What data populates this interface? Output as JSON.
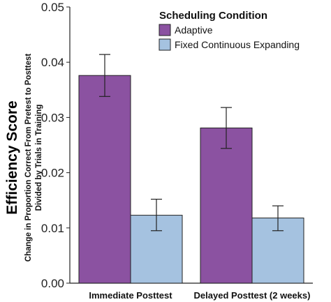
{
  "chart_data": {
    "type": "bar",
    "categories": [
      "Immediate Posttest",
      "Delayed Posttest (2 weeks)"
    ],
    "series": [
      {
        "name": "Adaptive",
        "color": "#8b52a1",
        "values": [
          0.0376,
          0.0281
        ],
        "error_low": [
          0.0338,
          0.0244
        ],
        "error_high": [
          0.0414,
          0.0318
        ]
      },
      {
        "name": "Fixed Continuous Expanding",
        "color": "#a5c2e0",
        "values": [
          0.0123,
          0.0118
        ],
        "error_low": [
          0.0095,
          0.0095
        ],
        "error_high": [
          0.0152,
          0.014
        ]
      }
    ],
    "ylabel": "Efficiency Score",
    "ylabel_sub": [
      "Change in Proportion Correct From Pretest to Posttest",
      "Divided by Trials in Training"
    ],
    "legend_title": "Scheduling Condition",
    "legend_position": "top-right",
    "ylim": [
      0,
      0.05
    ],
    "yticks": [
      "0.00",
      "0.01",
      "0.02",
      "0.03",
      "0.04",
      "0.05"
    ],
    "grid": false
  }
}
